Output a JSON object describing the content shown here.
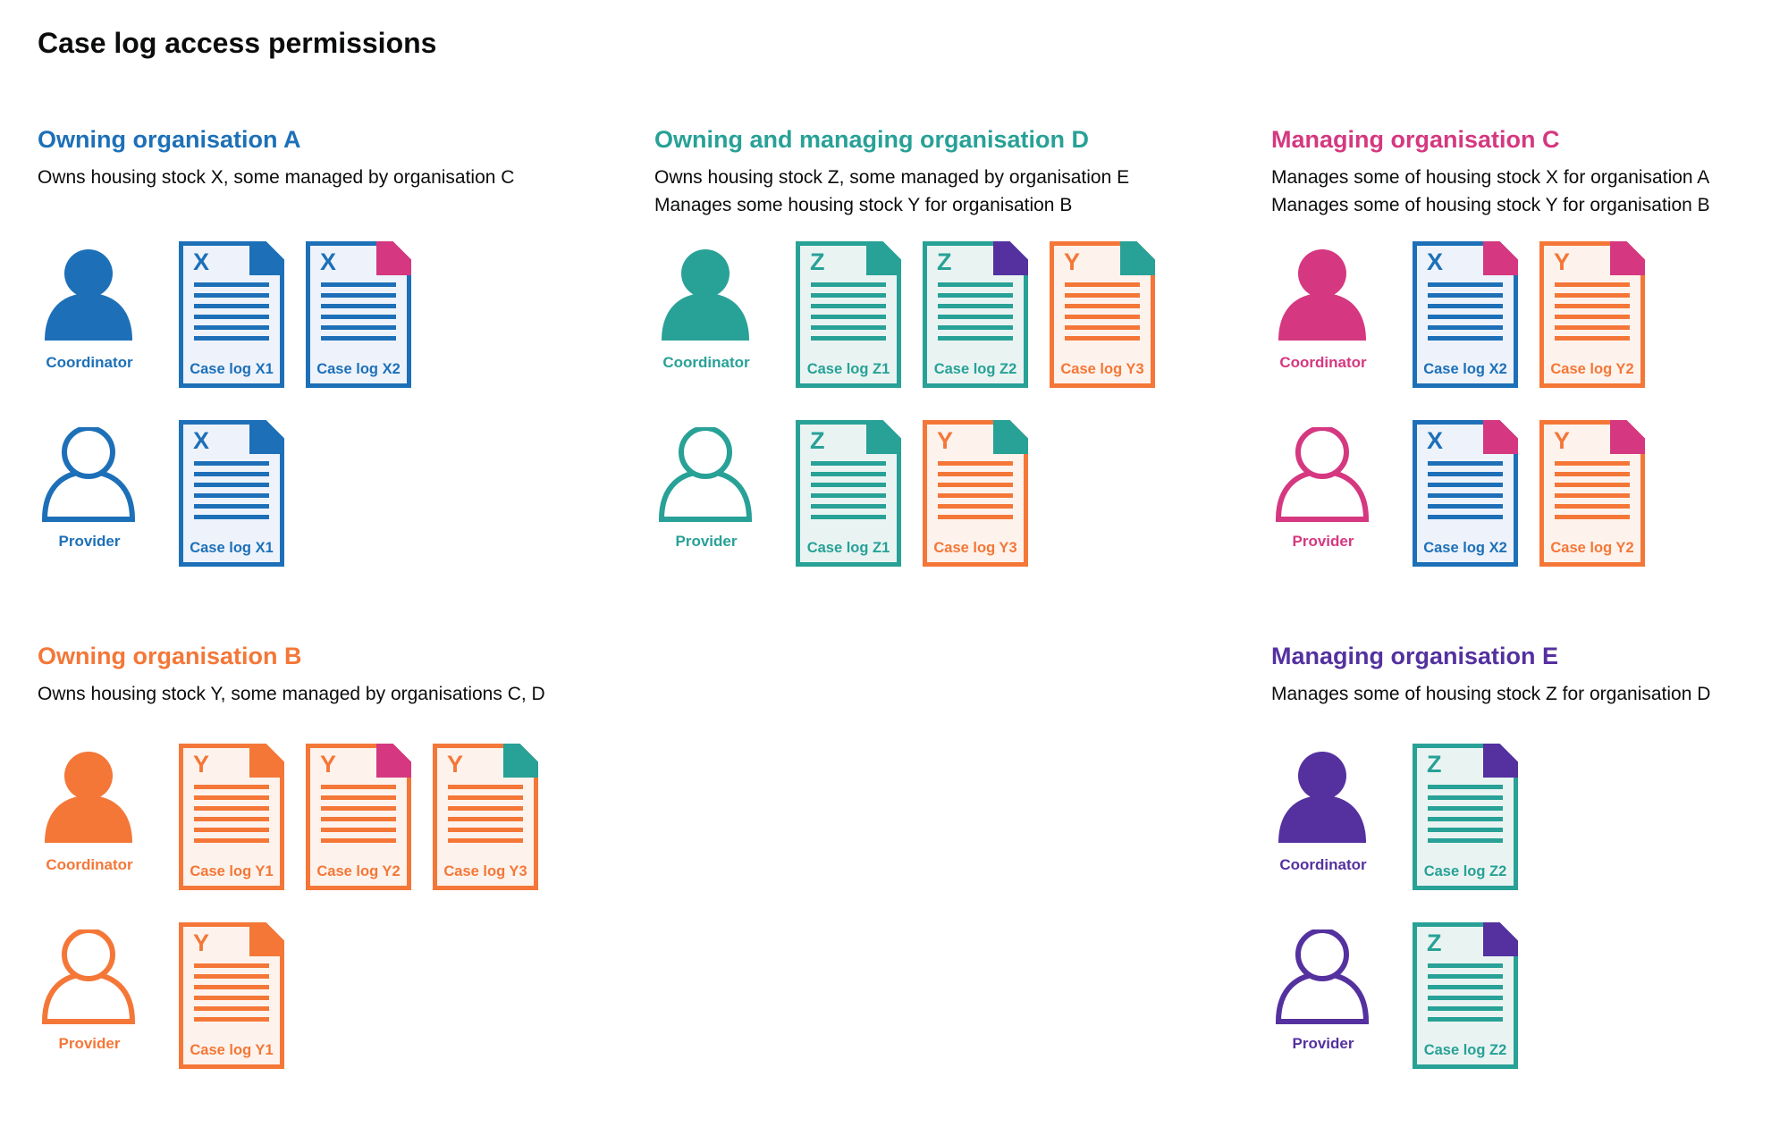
{
  "page": {
    "title": "Case log access permissions"
  },
  "colors": {
    "blue": "#1d70b8",
    "teal": "#28a197",
    "pink": "#d53880",
    "orange": "#f47738",
    "purple": "#54319f",
    "blue_tint": "#eef3fb",
    "teal_tint": "#e9f4f2",
    "orange_tint": "#fdf3ec",
    "text": "#0b0c0c"
  },
  "sections": [
    {
      "id": "org-a",
      "heading": "Owning organisation A",
      "color": "blue",
      "description": [
        "Owns housing stock X, some managed by organisation C"
      ],
      "rows": [
        {
          "role": "Coordinator",
          "person_style": "filled",
          "docs": [
            {
              "letter": "X",
              "label": "Case log X1",
              "doc_color": "blue",
              "fold_color": "blue"
            },
            {
              "letter": "X",
              "label": "Case log X2",
              "doc_color": "blue",
              "fold_color": "pink"
            }
          ]
        },
        {
          "role": "Provider",
          "person_style": "outline",
          "docs": [
            {
              "letter": "X",
              "label": "Case log X1",
              "doc_color": "blue",
              "fold_color": "blue"
            }
          ]
        }
      ]
    },
    {
      "id": "org-d",
      "heading": "Owning and managing organisation D",
      "color": "teal",
      "description": [
        "Owns housing stock Z, some managed by organisation E",
        "Manages some housing stock Y for organisation B"
      ],
      "rows": [
        {
          "role": "Coordinator",
          "person_style": "filled",
          "docs": [
            {
              "letter": "Z",
              "label": "Case log Z1",
              "doc_color": "teal",
              "fold_color": "teal"
            },
            {
              "letter": "Z",
              "label": "Case log Z2",
              "doc_color": "teal",
              "fold_color": "purple"
            },
            {
              "letter": "Y",
              "label": "Case log Y3",
              "doc_color": "orange",
              "fold_color": "teal"
            }
          ]
        },
        {
          "role": "Provider",
          "person_style": "outline",
          "docs": [
            {
              "letter": "Z",
              "label": "Case log Z1",
              "doc_color": "teal",
              "fold_color": "teal"
            },
            {
              "letter": "Y",
              "label": "Case log Y3",
              "doc_color": "orange",
              "fold_color": "teal"
            }
          ]
        }
      ]
    },
    {
      "id": "org-c",
      "heading": "Managing organisation C",
      "color": "pink",
      "description": [
        "Manages some of housing stock X for organisation A",
        "Manages some of housing stock Y for organisation B"
      ],
      "rows": [
        {
          "role": "Coordinator",
          "person_style": "filled",
          "docs": [
            {
              "letter": "X",
              "label": "Case log X2",
              "doc_color": "blue",
              "fold_color": "pink"
            },
            {
              "letter": "Y",
              "label": "Case log Y2",
              "doc_color": "orange",
              "fold_color": "pink"
            }
          ]
        },
        {
          "role": "Provider",
          "person_style": "outline",
          "docs": [
            {
              "letter": "X",
              "label": "Case log X2",
              "doc_color": "blue",
              "fold_color": "pink"
            },
            {
              "letter": "Y",
              "label": "Case log Y2",
              "doc_color": "orange",
              "fold_color": "pink"
            }
          ]
        }
      ]
    },
    {
      "id": "org-b",
      "heading": "Owning organisation B",
      "color": "orange",
      "description": [
        "Owns housing stock Y, some managed by organisations C, D"
      ],
      "rows": [
        {
          "role": "Coordinator",
          "person_style": "filled",
          "docs": [
            {
              "letter": "Y",
              "label": "Case log Y1",
              "doc_color": "orange",
              "fold_color": "orange"
            },
            {
              "letter": "Y",
              "label": "Case log Y2",
              "doc_color": "orange",
              "fold_color": "pink"
            },
            {
              "letter": "Y",
              "label": "Case log Y3",
              "doc_color": "orange",
              "fold_color": "teal"
            }
          ]
        },
        {
          "role": "Provider",
          "person_style": "outline",
          "docs": [
            {
              "letter": "Y",
              "label": "Case log Y1",
              "doc_color": "orange",
              "fold_color": "orange"
            }
          ]
        }
      ]
    },
    {
      "id": "org-e",
      "heading": "Managing organisation E",
      "color": "purple",
      "description": [
        "Manages some of housing stock Z for organisation D"
      ],
      "rows": [
        {
          "role": "Coordinator",
          "person_style": "filled",
          "docs": [
            {
              "letter": "Z",
              "label": "Case log Z2",
              "doc_color": "teal",
              "fold_color": "purple"
            }
          ]
        },
        {
          "role": "Provider",
          "person_style": "outline",
          "docs": [
            {
              "letter": "Z",
              "label": "Case log Z2",
              "doc_color": "teal",
              "fold_color": "purple"
            }
          ]
        }
      ]
    }
  ]
}
